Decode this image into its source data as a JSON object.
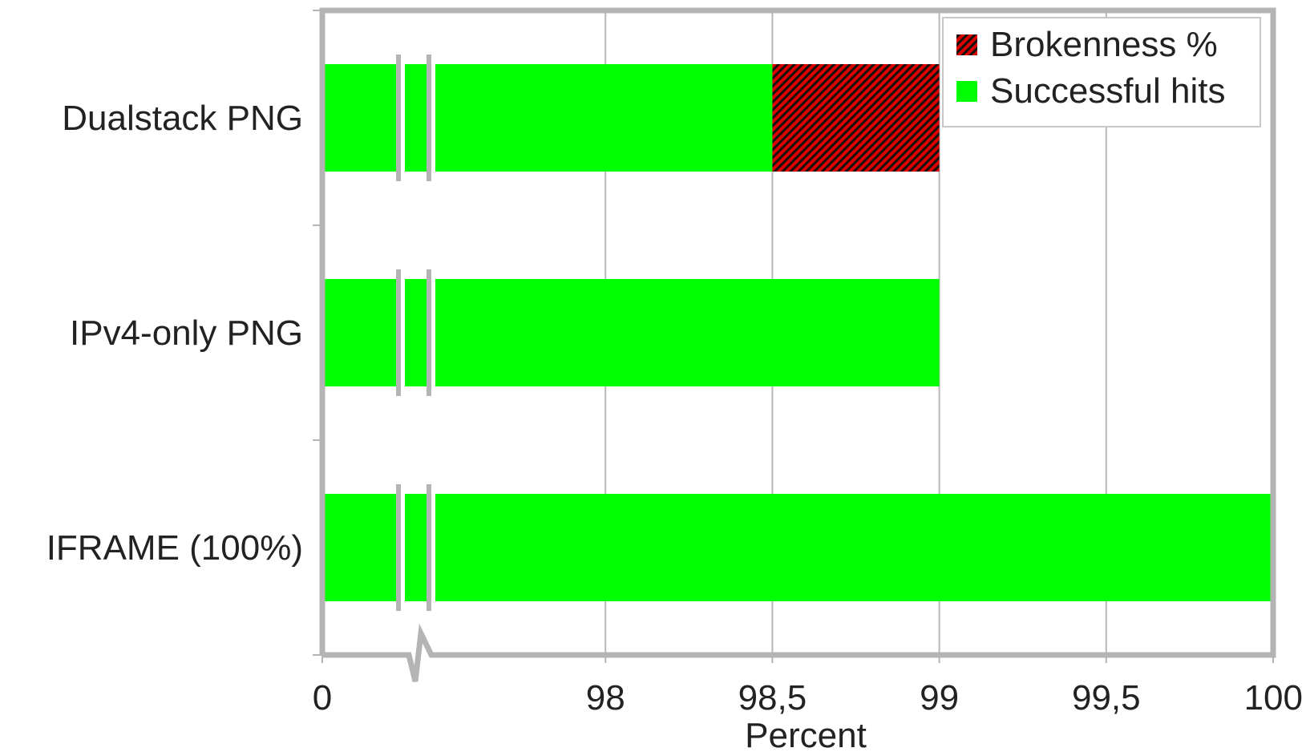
{
  "chart_data": {
    "type": "bar",
    "orientation": "horizontal",
    "stacked": true,
    "categories": [
      "Dualstack PNG",
      "IPv4-only PNG",
      "IFRAME (100%)"
    ],
    "series": [
      {
        "name": "Successful hits",
        "values": [
          98.5,
          99.0,
          100.0
        ],
        "color": "#00ff00"
      },
      {
        "name": "Brokenness %",
        "values": [
          0.5,
          0.0,
          0.0
        ],
        "color": "#cc0000",
        "pattern": "diagonal-hatch"
      }
    ],
    "xlabel": "Percent",
    "ylabel": "",
    "title": "",
    "xlim": [
      97.5,
      100
    ],
    "axis_break": {
      "from": 0,
      "to": 97.5
    },
    "xticks": [
      {
        "value": 0,
        "label": "0"
      },
      {
        "value": 98,
        "label": "98"
      },
      {
        "value": 98.5,
        "label": "98,5"
      },
      {
        "value": 99,
        "label": "99"
      },
      {
        "value": 99.5,
        "label": "99,5"
      },
      {
        "value": 100,
        "label": "100"
      }
    ],
    "grid": true,
    "legend": {
      "position": "top-right",
      "entries": [
        "Brokenness %",
        "Successful hits"
      ]
    }
  }
}
